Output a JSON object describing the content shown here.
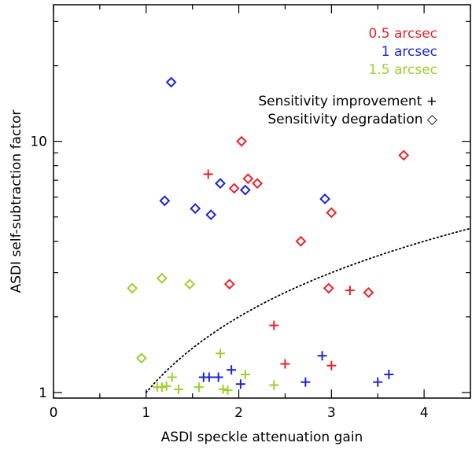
{
  "chart_data": {
    "type": "scatter",
    "xlabel": "ASDI speckle attenuation gain",
    "ylabel": "ASDI self-subtraction factor",
    "xlim": [
      0,
      4.5
    ],
    "ylim": [
      0.95,
      35
    ],
    "yscale": "log",
    "x_ticks": [
      {
        "value": 0,
        "label": "0"
      },
      {
        "value": 1,
        "label": "1"
      },
      {
        "value": 2,
        "label": "2"
      },
      {
        "value": 3,
        "label": "3"
      },
      {
        "value": 4,
        "label": "4"
      }
    ],
    "y_ticks": [
      {
        "value": 1,
        "label": "1"
      },
      {
        "value": 10,
        "label": "10"
      }
    ],
    "legend": {
      "position": "top-right",
      "series_labels": [
        "0.5 arcsec",
        "1 arcsec",
        "1.5 arcsec"
      ],
      "marker_labels": [
        "Sensitivity improvement +",
        "Sensitivity degradation ◇"
      ]
    },
    "colors": {
      "red": "#e8232b",
      "blue": "#1a26d6",
      "green": "#9bd02d",
      "axis": "#000000"
    },
    "curve": {
      "name": "threshold curve y = x",
      "style": "dotted",
      "x_range": [
        1,
        4.5
      ]
    },
    "series": [
      {
        "name": "0.5 arcsec",
        "color": "#e8232b",
        "improvement": [
          [
            1.67,
            7.4
          ],
          [
            2.38,
            1.85
          ],
          [
            2.5,
            1.3
          ],
          [
            3.0,
            1.28
          ],
          [
            3.2,
            2.55
          ]
        ],
        "degradation": [
          [
            2.03,
            10.0
          ],
          [
            1.95,
            6.5
          ],
          [
            2.1,
            7.1
          ],
          [
            2.2,
            6.8
          ],
          [
            1.9,
            2.7
          ],
          [
            2.67,
            4.0
          ],
          [
            3.0,
            5.2
          ],
          [
            2.97,
            2.6
          ],
          [
            3.4,
            2.5
          ],
          [
            3.78,
            8.8
          ]
        ]
      },
      {
        "name": "1 arcsec",
        "color": "#1a26d6",
        "improvement": [
          [
            1.62,
            1.15
          ],
          [
            1.68,
            1.15
          ],
          [
            1.78,
            1.15
          ],
          [
            1.92,
            1.23
          ],
          [
            2.02,
            1.08
          ],
          [
            2.72,
            1.1
          ],
          [
            2.9,
            1.4
          ],
          [
            3.5,
            1.1
          ],
          [
            3.62,
            1.18
          ]
        ],
        "degradation": [
          [
            1.27,
            17.2
          ],
          [
            1.2,
            5.8
          ],
          [
            1.53,
            5.4
          ],
          [
            1.7,
            5.1
          ],
          [
            1.8,
            6.8
          ],
          [
            2.07,
            6.4
          ],
          [
            2.93,
            5.9
          ]
        ]
      },
      {
        "name": "1.5 arcsec",
        "color": "#9bd02d",
        "improvement": [
          [
            1.12,
            1.05
          ],
          [
            1.17,
            1.05
          ],
          [
            1.22,
            1.06
          ],
          [
            1.28,
            1.15
          ],
          [
            1.35,
            1.03
          ],
          [
            1.57,
            1.05
          ],
          [
            1.8,
            1.43
          ],
          [
            1.83,
            1.03
          ],
          [
            1.88,
            1.02
          ],
          [
            2.07,
            1.18
          ],
          [
            2.38,
            1.07
          ]
        ],
        "degradation": [
          [
            0.85,
            2.6
          ],
          [
            1.17,
            2.85
          ],
          [
            1.47,
            2.7
          ],
          [
            0.95,
            1.37
          ]
        ]
      }
    ]
  }
}
